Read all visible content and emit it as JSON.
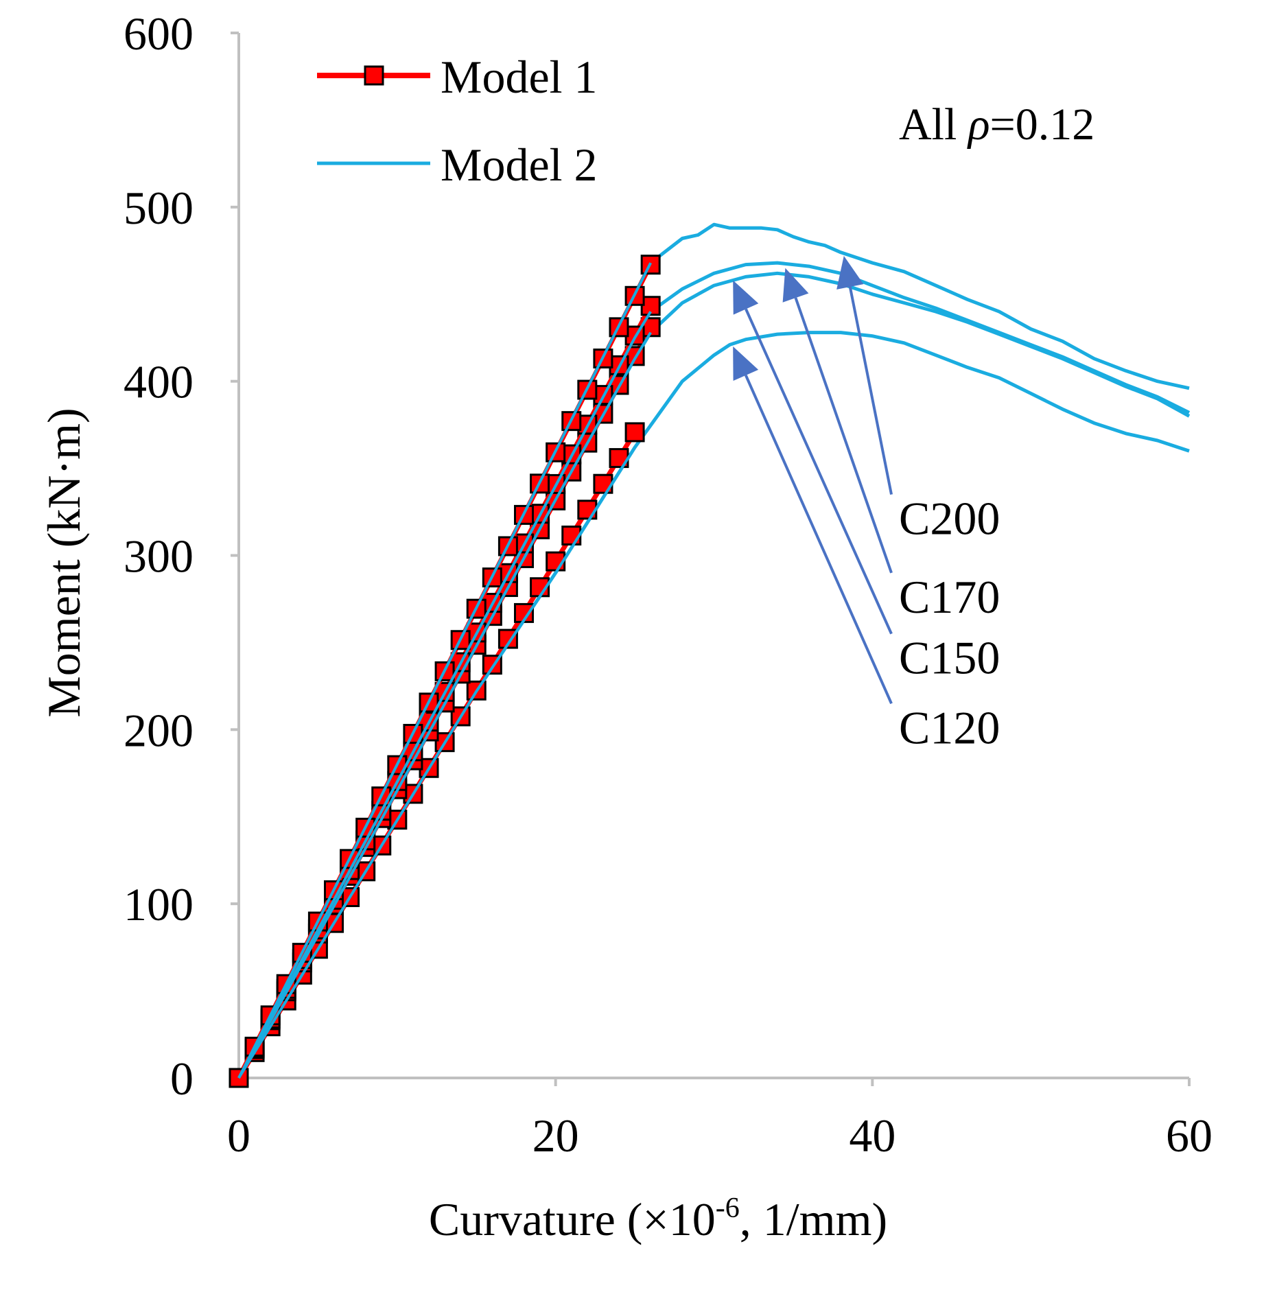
{
  "chart_data": {
    "type": "line",
    "xlabel": "Curvature (×10-6, 1/mm)",
    "xlabel_parts": {
      "pre": "Curvature (×10",
      "sup": "-6",
      "post": ", 1/mm)"
    },
    "ylabel": "Moment (kN·m)",
    "xlim": [
      0,
      60
    ],
    "ylim": [
      0,
      600
    ],
    "xticks": [
      0,
      20,
      40,
      60
    ],
    "yticks": [
      0,
      100,
      200,
      300,
      400,
      500,
      600
    ],
    "xtick_labels": [
      "0",
      "20",
      "40",
      "60"
    ],
    "ytick_labels": [
      "0",
      "100",
      "200",
      "300",
      "400",
      "500",
      "600"
    ],
    "grid": false,
    "legend_position": "top-left",
    "legend": [
      {
        "label": "Model 1",
        "color": "#ff0000",
        "marker": "square"
      },
      {
        "label": "Model 2",
        "color": "#1aace0",
        "marker": "none"
      }
    ],
    "annotation": {
      "pre": "All ",
      "greek": "ρ",
      "post": "=0.12"
    },
    "colors": {
      "model1": "#ff0000",
      "model2": "#1aace0",
      "arrow": "#4a72c4",
      "axis": "#c0c0c0"
    },
    "series": [
      {
        "name": "Model 1",
        "grade": "C120",
        "stiffness": 14.83,
        "x_end": 25
      },
      {
        "name": "Model 1",
        "grade": "C150",
        "stiffness": 16.58,
        "x_end": 26
      },
      {
        "name": "Model 1",
        "grade": "C170",
        "stiffness": 17.05,
        "x_end": 26
      },
      {
        "name": "Model 1",
        "grade": "C200",
        "stiffness": 17.96,
        "x_end": 26
      },
      {
        "name": "Model 2",
        "grade": "C120",
        "x": [
          0,
          5,
          10,
          15,
          20,
          25,
          28,
          30,
          31,
          32,
          34,
          36,
          38,
          40,
          42,
          44,
          46,
          48,
          50,
          52,
          54,
          56,
          58,
          60
        ],
        "y": [
          0,
          74,
          148,
          222,
          290,
          362,
          400,
          415,
          421,
          424,
          427,
          428,
          428,
          426,
          422,
          415,
          408,
          402,
          393,
          384,
          376,
          370,
          366,
          360
        ]
      },
      {
        "name": "Model 2",
        "grade": "C150",
        "x": [
          0,
          5,
          10,
          15,
          20,
          25,
          26,
          28,
          30,
          32,
          34,
          36,
          38,
          40,
          42,
          44,
          46,
          48,
          50,
          52,
          54,
          56,
          58,
          60
        ],
        "y": [
          0,
          82,
          165,
          248,
          332,
          413,
          428,
          445,
          455,
          460,
          462,
          460,
          456,
          450,
          445,
          440,
          434,
          427,
          420,
          413,
          405,
          397,
          390,
          380
        ]
      },
      {
        "name": "Model 2",
        "grade": "C170",
        "x": [
          0,
          5,
          10,
          15,
          20,
          25,
          26,
          28,
          30,
          32,
          34,
          36,
          38,
          40,
          42,
          44,
          46,
          48,
          50,
          52,
          54,
          56,
          58,
          60
        ],
        "y": [
          0,
          85,
          170,
          255,
          340,
          425,
          440,
          453,
          462,
          467,
          468,
          466,
          462,
          455,
          448,
          442,
          435,
          428,
          421,
          414,
          406,
          398,
          391,
          382
        ]
      },
      {
        "name": "Model 2",
        "grade": "C200",
        "x": [
          0,
          5,
          10,
          15,
          20,
          25,
          26,
          28,
          29,
          30,
          31,
          32,
          33,
          34,
          35,
          36,
          37,
          38,
          40,
          42,
          44,
          46,
          48,
          50,
          52,
          54,
          56,
          58,
          60
        ],
        "y": [
          0,
          90,
          180,
          270,
          360,
          450,
          468,
          482,
          484,
          490,
          488,
          488,
          488,
          487,
          483,
          480,
          478,
          474,
          468,
          463,
          455,
          447,
          440,
          430,
          423,
          413,
          406,
          400,
          396
        ]
      }
    ],
    "curve_labels": [
      {
        "text": "C200",
        "label_x": 41.2,
        "label_y": 335,
        "tip_x": 38.2,
        "tip_y": 472
      },
      {
        "text": "C170",
        "label_x": 41.2,
        "label_y": 290,
        "tip_x": 34.5,
        "tip_y": 465
      },
      {
        "text": "C150",
        "label_x": 41.2,
        "label_y": 255,
        "tip_x": 31.2,
        "tip_y": 458
      },
      {
        "text": "C120",
        "label_x": 41.2,
        "label_y": 215,
        "tip_x": 31.2,
        "tip_y": 420
      }
    ]
  }
}
